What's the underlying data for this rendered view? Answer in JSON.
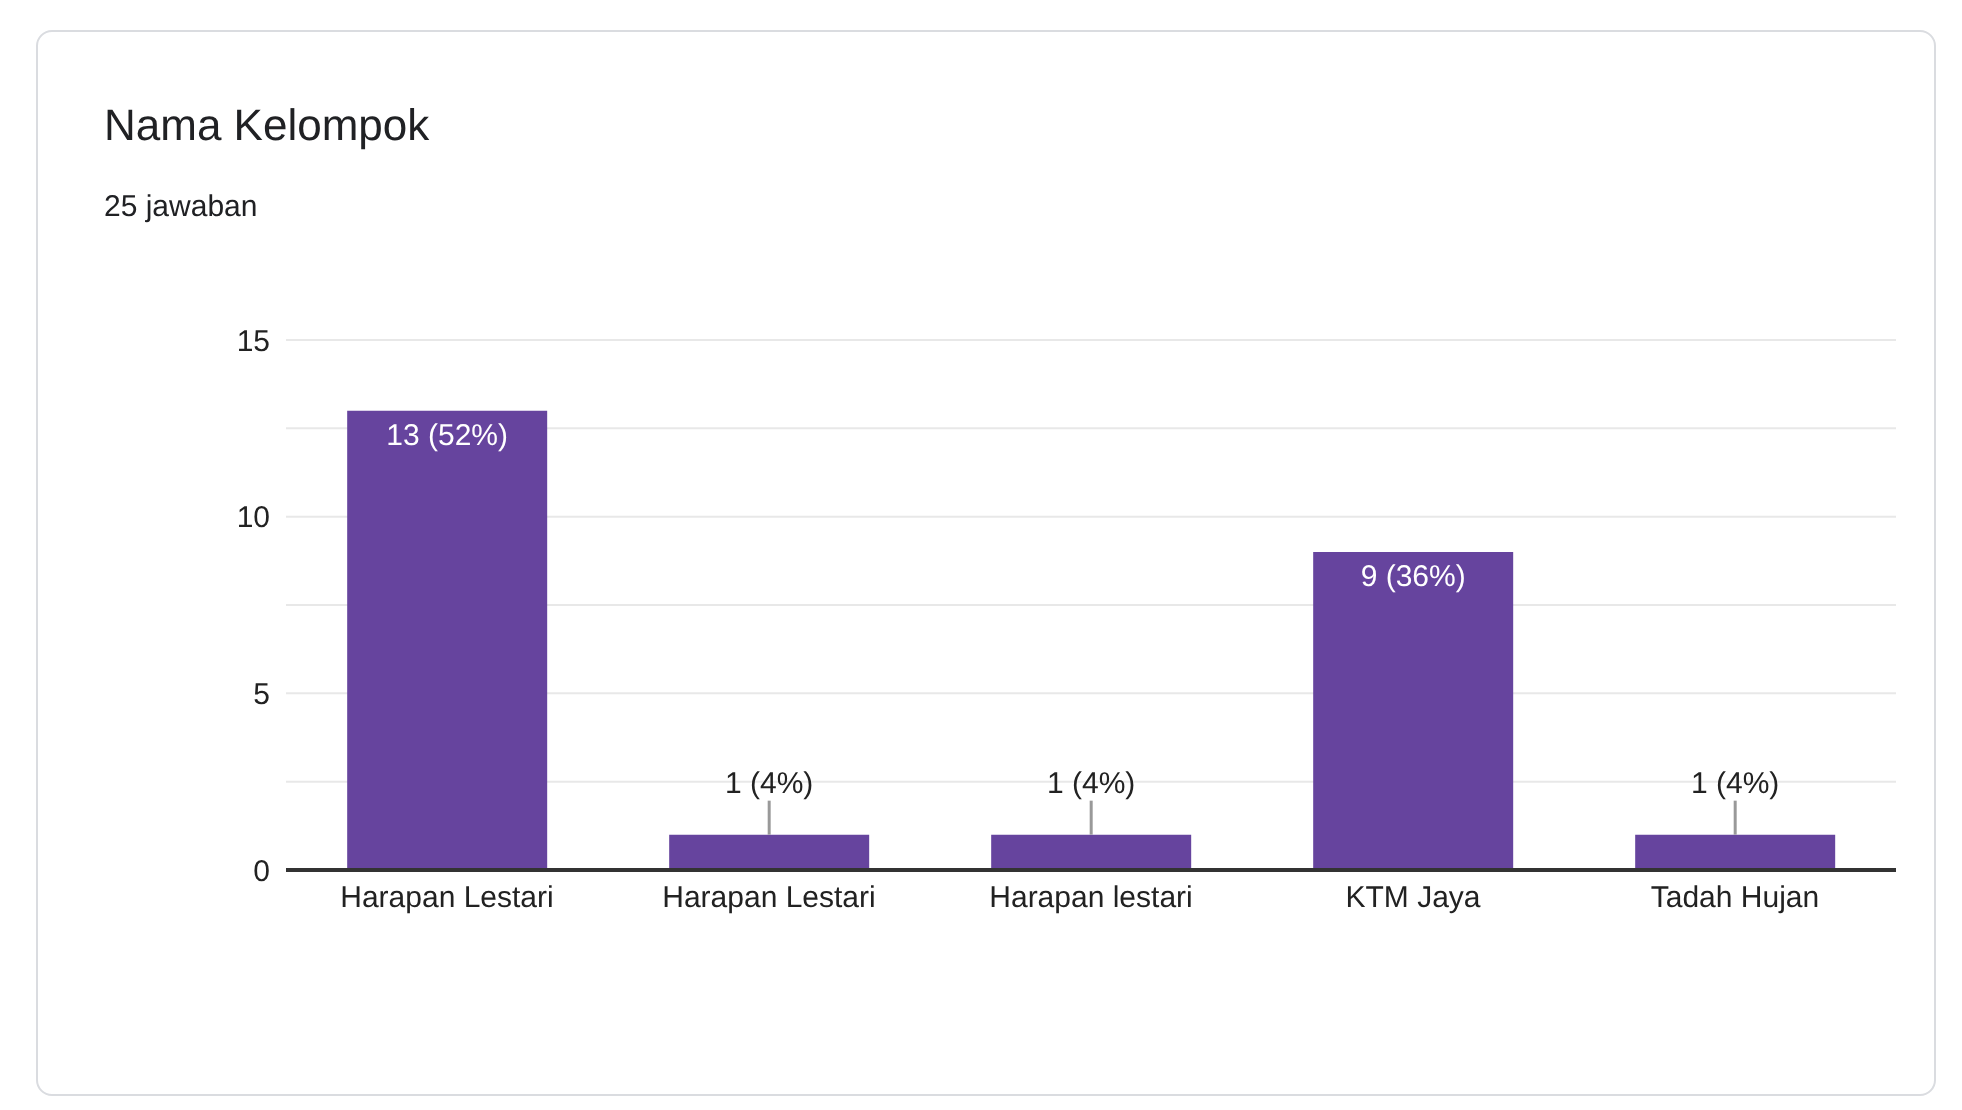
{
  "chart_data": {
    "type": "bar",
    "title": "Nama Kelompok",
    "subtitle": "25 jawaban",
    "categories": [
      "Harapan Lestari",
      "Harapan Lestari",
      "Harapan lestari",
      "KTM Jaya",
      "Tadah Hujan"
    ],
    "values": [
      13,
      1,
      1,
      9,
      1
    ],
    "value_labels": [
      "13 (52%)",
      "1 (4%)",
      "1 (4%)",
      "9 (36%)",
      "1 (4%)"
    ],
    "color": "#66449e",
    "ylim": [
      0,
      15
    ],
    "yticks": [
      0,
      {
        "value": 2.5,
        "label": null
      },
      5,
      {
        "value": 7.5,
        "label": null
      },
      10,
      {
        "value": 12.5,
        "label": null
      },
      15
    ],
    "grid": "y"
  }
}
